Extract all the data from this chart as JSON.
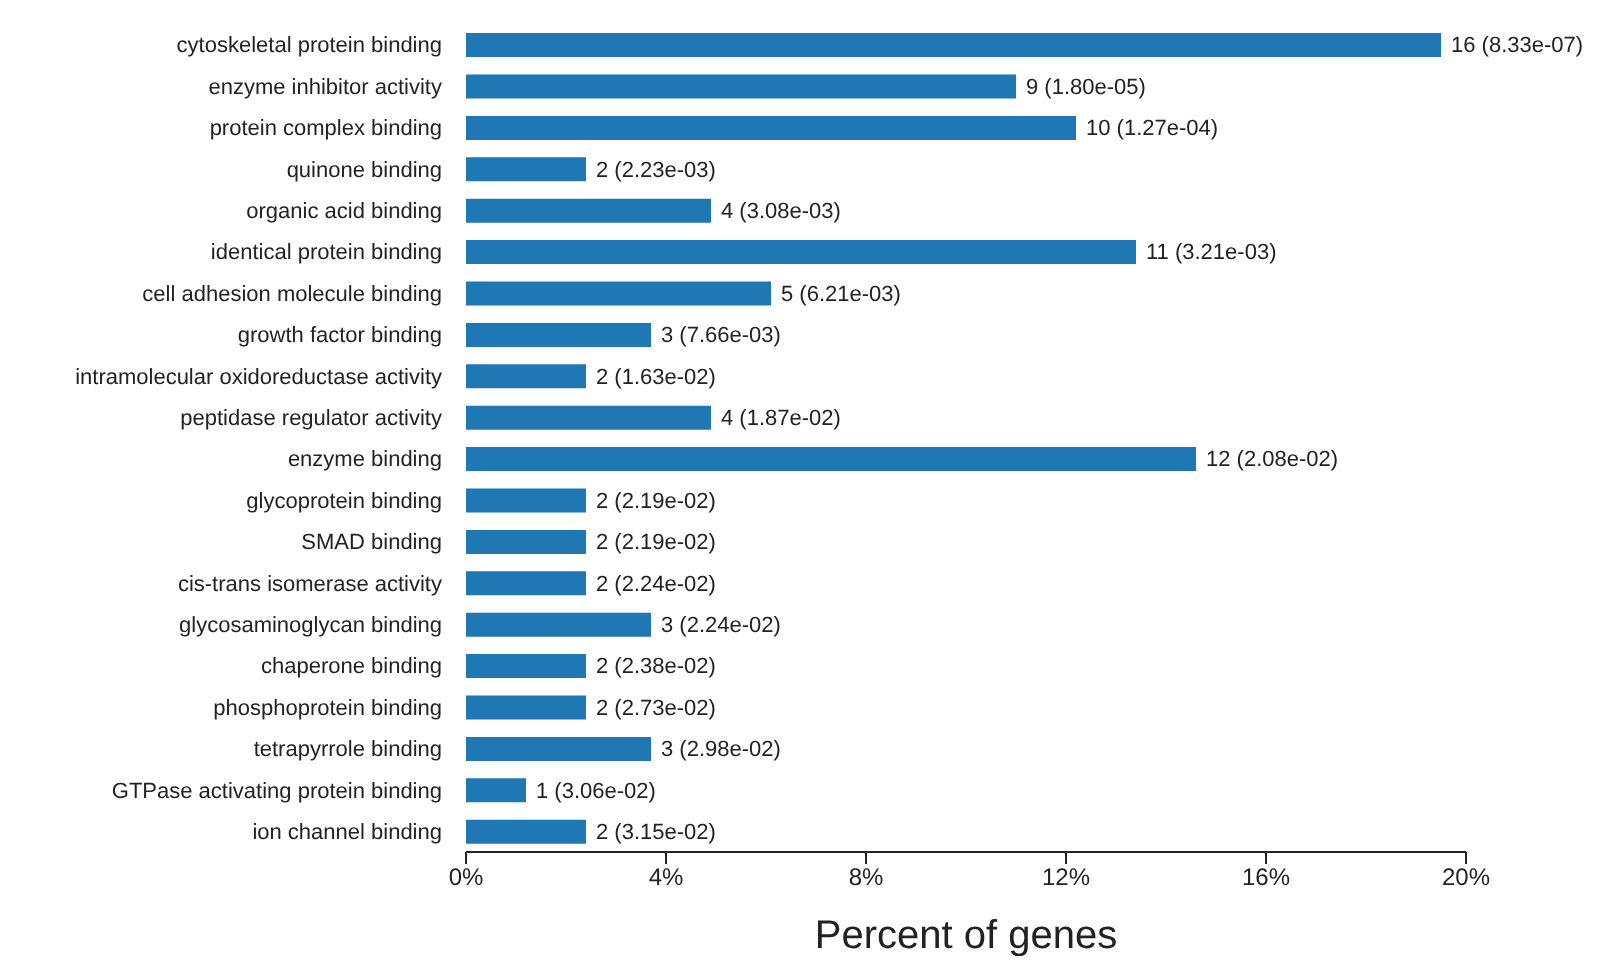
{
  "chart_data": {
    "type": "bar",
    "orientation": "horizontal",
    "xlabel": "Percent of genes",
    "categories": [
      "cytoskeletal protein binding",
      "enzyme inhibitor activity",
      "protein complex binding",
      "quinone binding",
      "organic acid binding",
      "identical protein binding",
      "cell adhesion molecule binding",
      "growth factor binding",
      "intramolecular oxidoreductase activity",
      "peptidase regulator activity",
      "enzyme binding",
      "glycoprotein binding",
      "SMAD binding",
      "cis-trans isomerase activity",
      "glycosaminoglycan binding",
      "chaperone binding",
      "phosphoprotein binding",
      "tetrapyrrole binding",
      "GTPase activating protein binding",
      "ion channel binding"
    ],
    "values": [
      19.5,
      11.0,
      12.2,
      2.4,
      4.9,
      13.4,
      6.1,
      3.7,
      2.4,
      4.9,
      14.6,
      2.4,
      2.4,
      2.4,
      3.7,
      2.4,
      2.4,
      3.7,
      1.2,
      2.4
    ],
    "annotations": [
      {
        "text": "16 (8.33e-07)",
        "x": 19.5,
        "y": "cytoskeletal protein binding"
      },
      {
        "text": "9 (1.80e-05)",
        "x": 11.0,
        "y": "enzyme inhibitor activity"
      },
      {
        "text": "10 (1.27e-04)",
        "x": 12.2,
        "y": "protein complex binding"
      },
      {
        "text": "2 (2.23e-03)",
        "x": 2.4,
        "y": "quinone binding"
      },
      {
        "text": "4 (3.08e-03)",
        "x": 4.9,
        "y": "organic acid binding"
      },
      {
        "text": "11 (3.21e-03)",
        "x": 13.4,
        "y": "identical protein binding"
      },
      {
        "text": "5 (6.21e-03)",
        "x": 6.1,
        "y": "cell adhesion molecule binding"
      },
      {
        "text": "3 (7.66e-03)",
        "x": 3.7,
        "y": "growth factor binding"
      },
      {
        "text": "2 (1.63e-02)",
        "x": 2.4,
        "y": "intramolecular oxidoreductase activity"
      },
      {
        "text": "4 (1.87e-02)",
        "x": 4.9,
        "y": "peptidase regulator activity"
      },
      {
        "text": "12 (2.08e-02)",
        "x": 14.6,
        "y": "enzyme binding"
      },
      {
        "text": "2 (2.19e-02)",
        "x": 2.4,
        "y": "glycoprotein binding"
      },
      {
        "text": "2 (2.19e-02)",
        "x": 2.4,
        "y": "SMAD binding"
      },
      {
        "text": "2 (2.24e-02)",
        "x": 2.4,
        "y": "cis-trans isomerase activity"
      },
      {
        "text": "3 (2.24e-02)",
        "x": 3.7,
        "y": "glycosaminoglycan binding"
      },
      {
        "text": "2 (2.38e-02)",
        "x": 2.4,
        "y": "chaperone binding"
      },
      {
        "text": "2 (2.73e-02)",
        "x": 2.4,
        "y": "phosphoprotein binding"
      },
      {
        "text": "3 (2.98e-02)",
        "x": 3.7,
        "y": "tetrapyrrole binding"
      },
      {
        "text": "1 (3.06e-02)",
        "x": 1.2,
        "y": "GTPase activating protein binding"
      },
      {
        "text": "2 (3.15e-02)",
        "x": 2.4,
        "y": "ion channel binding"
      }
    ],
    "color": "#1f77b4",
    "xlim": [
      0,
      20
    ],
    "xticks": [
      {
        "value": 0,
        "label": "0%"
      },
      {
        "value": 4,
        "label": "4%"
      },
      {
        "value": 8,
        "label": "8%"
      },
      {
        "value": 12,
        "label": "12%"
      },
      {
        "value": 16,
        "label": "16%"
      },
      {
        "value": 20,
        "label": "20%"
      }
    ],
    "grid": false,
    "legend": false
  }
}
